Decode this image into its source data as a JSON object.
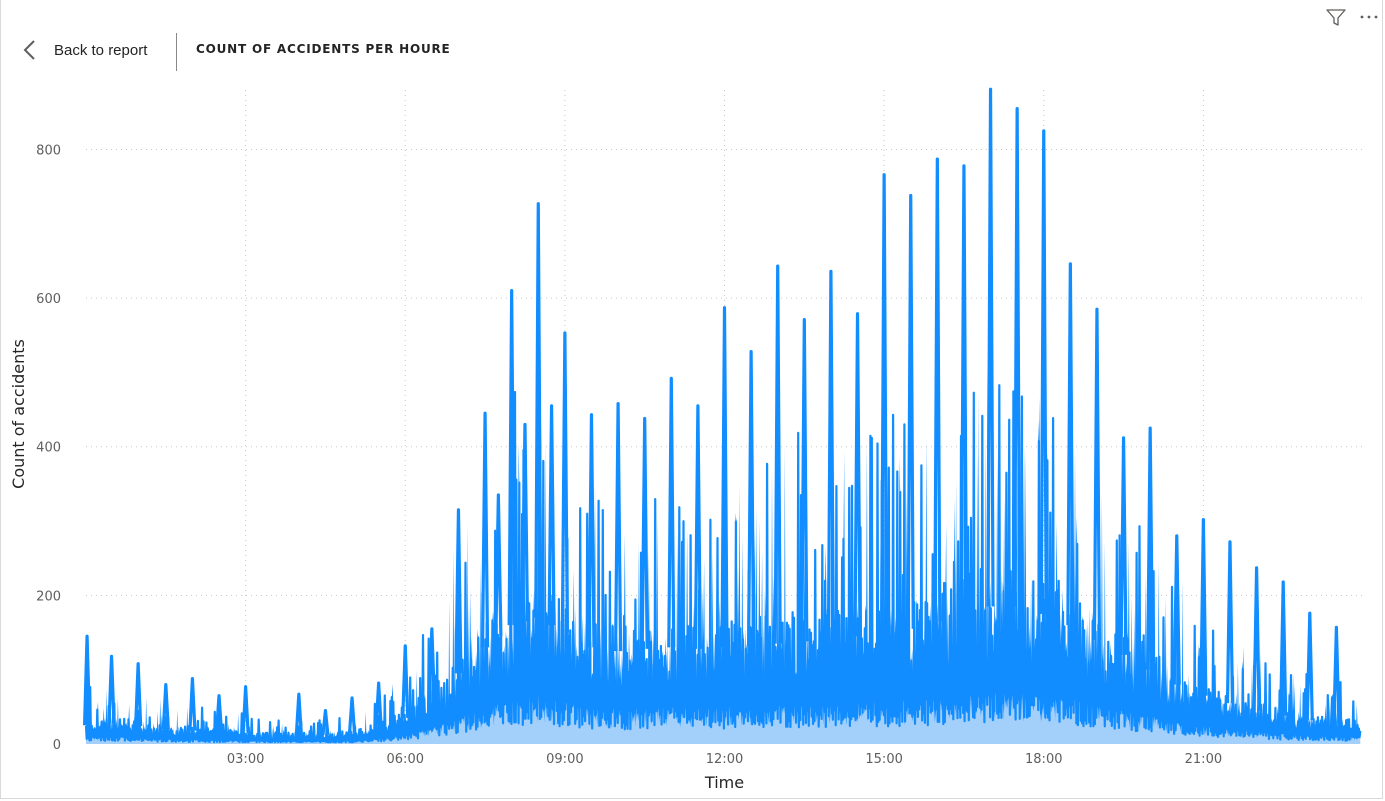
{
  "header": {
    "back_label": "Back to report",
    "title": "COUNT OF ACCIDENTS PER HOURE"
  },
  "icons": {
    "back": "chevron-left-icon",
    "filter": "filter-icon",
    "more": "more-options-icon"
  },
  "colors": {
    "line": "#118dff",
    "area_fill": "#a3cffb",
    "grid": "#c8c6c4",
    "text": "#252423",
    "tick": "#605e5c"
  },
  "chart_data": {
    "type": "line",
    "title": "COUNT OF ACCIDENTS PER HOURE",
    "xlabel": "Time",
    "ylabel": "Count of accidents",
    "x_unit": "hours since 00:00",
    "xlim": [
      0,
      24
    ],
    "ylim": [
      0,
      880
    ],
    "grid": true,
    "x_ticks": [
      "03:00",
      "06:00",
      "09:00",
      "12:00",
      "15:00",
      "18:00",
      "21:00"
    ],
    "y_ticks": [
      "0",
      "200",
      "400",
      "600",
      "800"
    ],
    "series": [
      {
        "x": [
          0.0,
          0.5,
          1.0,
          1.5,
          2.0,
          2.5,
          3.0,
          3.5,
          4.0,
          4.5,
          5.0,
          5.5,
          6.0,
          6.5,
          7.0,
          7.5,
          8.0,
          8.5,
          9.0,
          9.5,
          10.0,
          10.5,
          11.0,
          11.5,
          12.0,
          12.5,
          13.0,
          13.5,
          14.0,
          14.5,
          15.0,
          15.5,
          16.0,
          16.5,
          17.0,
          17.5,
          18.0,
          18.5,
          19.0,
          19.5,
          20.0,
          20.5,
          21.0,
          21.5,
          22.0,
          22.5,
          23.0,
          23.5,
          23.95
        ],
        "values": [
          25,
          28,
          24,
          20,
          18,
          16,
          14,
          12,
          12,
          12,
          15,
          22,
          35,
          60,
          95,
          130,
          160,
          170,
          150,
          130,
          125,
          128,
          130,
          128,
          130,
          132,
          135,
          138,
          140,
          145,
          150,
          155,
          165,
          175,
          185,
          185,
          175,
          160,
          140,
          120,
          100,
          80,
          65,
          55,
          45,
          38,
          32,
          28,
          25
        ]
      }
    ],
    "peaks": {
      "x": [
        0.02,
        0.48,
        0.98,
        1.5,
        2.0,
        2.5,
        3.0,
        4.0,
        4.5,
        5.0,
        5.5,
        6.0,
        6.5,
        7.0,
        7.5,
        7.75,
        8.0,
        8.25,
        8.5,
        8.75,
        9.0,
        9.5,
        10.0,
        10.5,
        11.0,
        11.5,
        12.0,
        12.5,
        13.0,
        13.5,
        14.0,
        14.5,
        15.0,
        15.5,
        16.0,
        16.5,
        17.0,
        17.5,
        18.0,
        18.5,
        19.0,
        19.5,
        20.0,
        20.5,
        21.0,
        21.5,
        22.0,
        22.5,
        23.0,
        23.5
      ],
      "values": [
        145,
        118,
        108,
        80,
        88,
        65,
        77,
        67,
        45,
        62,
        82,
        132,
        155,
        315,
        445,
        335,
        610,
        430,
        727,
        455,
        553,
        443,
        458,
        438,
        492,
        455,
        587,
        528,
        643,
        571,
        636,
        579,
        766,
        738,
        787,
        778,
        881,
        855,
        825,
        646,
        585,
        412,
        425,
        280,
        302,
        272,
        237,
        218,
        176,
        157
      ]
    }
  }
}
